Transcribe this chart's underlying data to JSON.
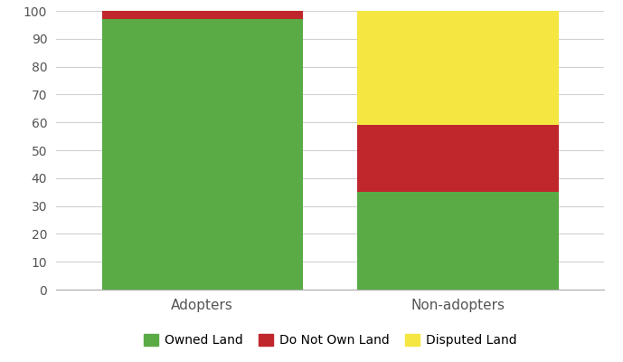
{
  "categories": [
    "Adopters",
    "Non-adopters"
  ],
  "owned_land": [
    97,
    35
  ],
  "do_not_own_land": [
    3,
    24
  ],
  "disputed_land": [
    0,
    41
  ],
  "colors": {
    "owned_land": "#5aaa46",
    "do_not_own_land": "#c0272d",
    "disputed_land": "#f5e642"
  },
  "legend_labels": [
    "Owned Land",
    "Do Not Own Land",
    "Disputed Land"
  ],
  "ylim": [
    0,
    100
  ],
  "yticks": [
    0,
    10,
    20,
    30,
    40,
    50,
    60,
    70,
    80,
    90,
    100
  ],
  "bar_width": 0.55,
  "x_positions": [
    0.3,
    1.0
  ],
  "xlim": [
    -0.1,
    1.4
  ],
  "background_color": "#ffffff",
  "grid_color": "#d0d0d0",
  "tick_label_fontsize": 11,
  "legend_fontsize": 10
}
